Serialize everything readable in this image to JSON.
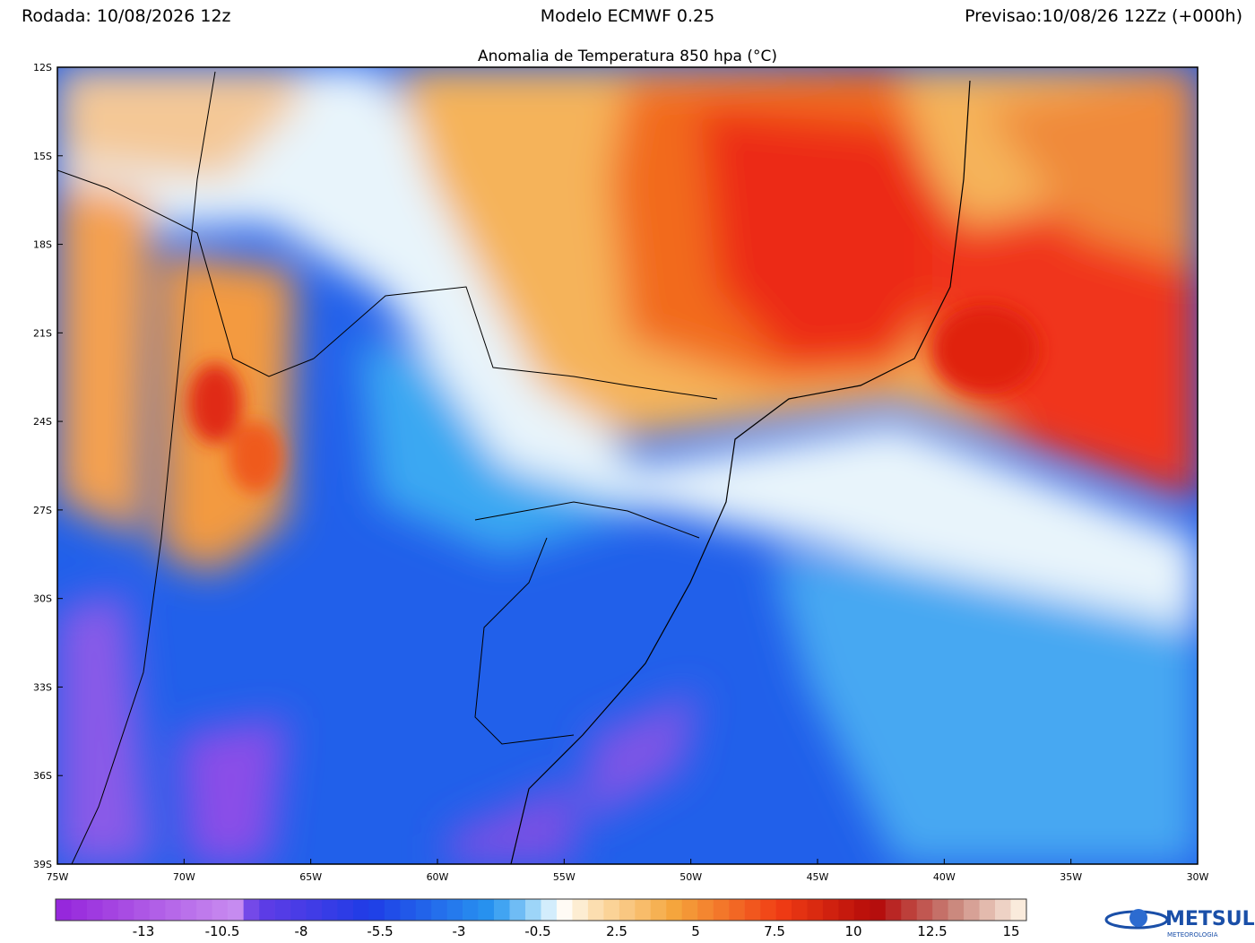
{
  "header": {
    "run": "Rodada: 10/08/2026 12z",
    "model": "Modelo ECMWF 0.25",
    "forecast": "Previsao:10/08/26 12Zz (+000h)"
  },
  "map": {
    "title": "Anomalia de Temperatura 850 hpa (°C)",
    "latitude_labels": [
      "12S",
      "15S",
      "18S",
      "21S",
      "24S",
      "27S",
      "30S",
      "33S",
      "36S",
      "39S"
    ],
    "longitude_labels": [
      "75W",
      "70W",
      "65W",
      "60W",
      "55W",
      "50W",
      "45W",
      "40W",
      "35W",
      "30W"
    ]
  },
  "colorbar": {
    "labels": [
      "-13",
      "-10.5",
      "-8",
      "-5.5",
      "-3",
      "-0.5",
      "2.5",
      "5",
      "7.5",
      "10",
      "12.5",
      "15"
    ]
  },
  "logo": {
    "name": "METSUL",
    "subtitle": "METEOROLOGIA"
  }
}
